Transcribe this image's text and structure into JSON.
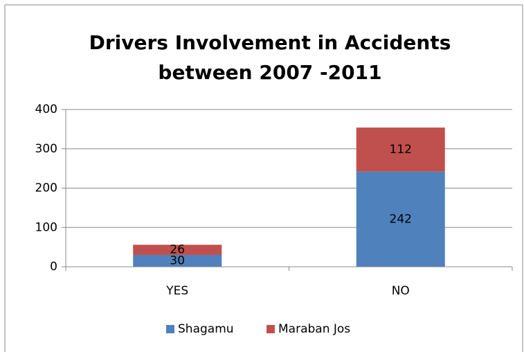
{
  "chart_data": {
    "type": "stacked_bar",
    "title": [
      "Drivers Involvement in Accidents",
      "between 2007 -2011"
    ],
    "categories": [
      "YES",
      "NO"
    ],
    "series": [
      {
        "name": "Shagamu",
        "color": "#4f81bd",
        "values": [
          30,
          242
        ]
      },
      {
        "name": "Maraban Jos",
        "color": "#c0504d",
        "values": [
          26,
          112
        ]
      }
    ],
    "ylim": [
      0,
      400
    ],
    "yticks": [
      0,
      100,
      200,
      300,
      400
    ],
    "grid": true,
    "legend": "bottom"
  }
}
